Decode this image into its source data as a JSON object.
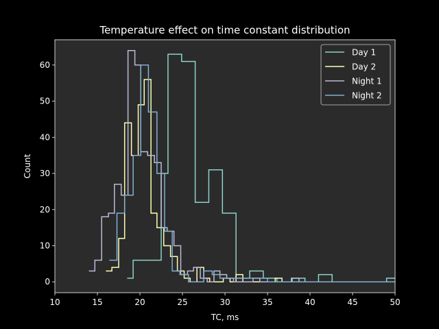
{
  "chart_data": {
    "type": "line",
    "title": "Temperature effect on time constant distribution",
    "xlabel": "TC, ms",
    "ylabel": "Count",
    "xlim": [
      10,
      50
    ],
    "ylim": [
      -3,
      67
    ],
    "xticks": [
      10,
      15,
      20,
      25,
      30,
      35,
      40,
      45,
      50
    ],
    "yticks": [
      0,
      10,
      20,
      30,
      40,
      50,
      60
    ],
    "grid": false,
    "legend_position": "top-right",
    "style": {
      "figure_background": "#000000",
      "axes_background": "#2b2b2b",
      "text_color": "#ffffff"
    },
    "series": [
      {
        "name": "Day 1",
        "color": "#8dd3c7",
        "step": "post",
        "x": [
          18.5,
          19.2,
          22.5,
          23.3,
          24.9,
          26.5,
          28.1,
          29.7,
          31.3,
          32.9,
          34.5,
          36.1,
          37.8,
          39.4,
          41.0,
          42.6,
          44.2,
          45.8,
          47.4,
          49.0,
          50.0
        ],
        "y": [
          1,
          6,
          30,
          63,
          61,
          22,
          31,
          19,
          1,
          3,
          1,
          0,
          1,
          0,
          2,
          0,
          0,
          0,
          0,
          1,
          1
        ]
      },
      {
        "name": "Day 2",
        "color": "#ffffb3",
        "step": "post",
        "x": [
          16.0,
          16.7,
          17.5,
          18.2,
          19.0,
          19.8,
          20.5,
          21.3,
          22.0,
          22.8,
          23.6,
          24.4,
          25.2,
          25.9,
          26.7,
          27.5,
          28.2,
          29.0,
          29.8,
          30.6,
          31.3,
          32.1,
          32.8,
          33.6,
          34.4,
          35.2,
          35.9,
          36.7
        ],
        "y": [
          3,
          4,
          12,
          44,
          35,
          49,
          56,
          19,
          15,
          10,
          7,
          3,
          1,
          0,
          4,
          1,
          0,
          0,
          1,
          0,
          2,
          0,
          0,
          0,
          0,
          0,
          1,
          0
        ]
      },
      {
        "name": "Night 1",
        "color": "#bebada",
        "step": "post",
        "x": [
          14.0,
          14.7,
          15.5,
          16.3,
          17.0,
          17.8,
          18.6,
          19.4,
          20.1,
          20.9,
          21.7,
          22.5,
          23.2,
          24.0,
          24.8,
          25.6,
          26.3,
          27.1,
          27.9,
          28.7,
          29.4,
          30.2,
          31.0,
          31.8,
          32.5,
          33.3,
          34.1,
          34.8,
          35.6,
          36.4,
          37.2,
          37.9,
          38.7,
          39.5
        ],
        "y": [
          3,
          6,
          18,
          19,
          27,
          24,
          64,
          60,
          36,
          35,
          33,
          15,
          14,
          10,
          2,
          3,
          4,
          1,
          0,
          3,
          2,
          1,
          0,
          0,
          0,
          1,
          0,
          0,
          0,
          0,
          0,
          1,
          0,
          0
        ]
      },
      {
        "name": "Night 2",
        "color": "#80b1d3",
        "step": "post",
        "x": [
          16.4,
          17.3,
          18.2,
          19.2,
          20.1,
          21.0,
          22.0,
          22.9,
          23.8,
          24.7,
          25.7,
          26.6,
          27.5,
          28.5,
          29.4,
          30.3,
          31.2,
          32.2,
          33.1,
          34.0,
          35.0,
          35.9,
          36.8,
          37.7,
          38.7,
          39.6,
          40.5,
          41.5,
          42.4,
          43.3,
          44.2,
          45.2,
          46.1,
          47.0,
          48.0,
          48.9,
          50.0
        ],
        "y": [
          6,
          19,
          24,
          35,
          60,
          47,
          30,
          14,
          3,
          2,
          0,
          0,
          3,
          2,
          1,
          1,
          1,
          1,
          1,
          1,
          0,
          0,
          0,
          0,
          0,
          0,
          0,
          0,
          0,
          0,
          0,
          0,
          0,
          0,
          0,
          0,
          0
        ]
      }
    ]
  }
}
